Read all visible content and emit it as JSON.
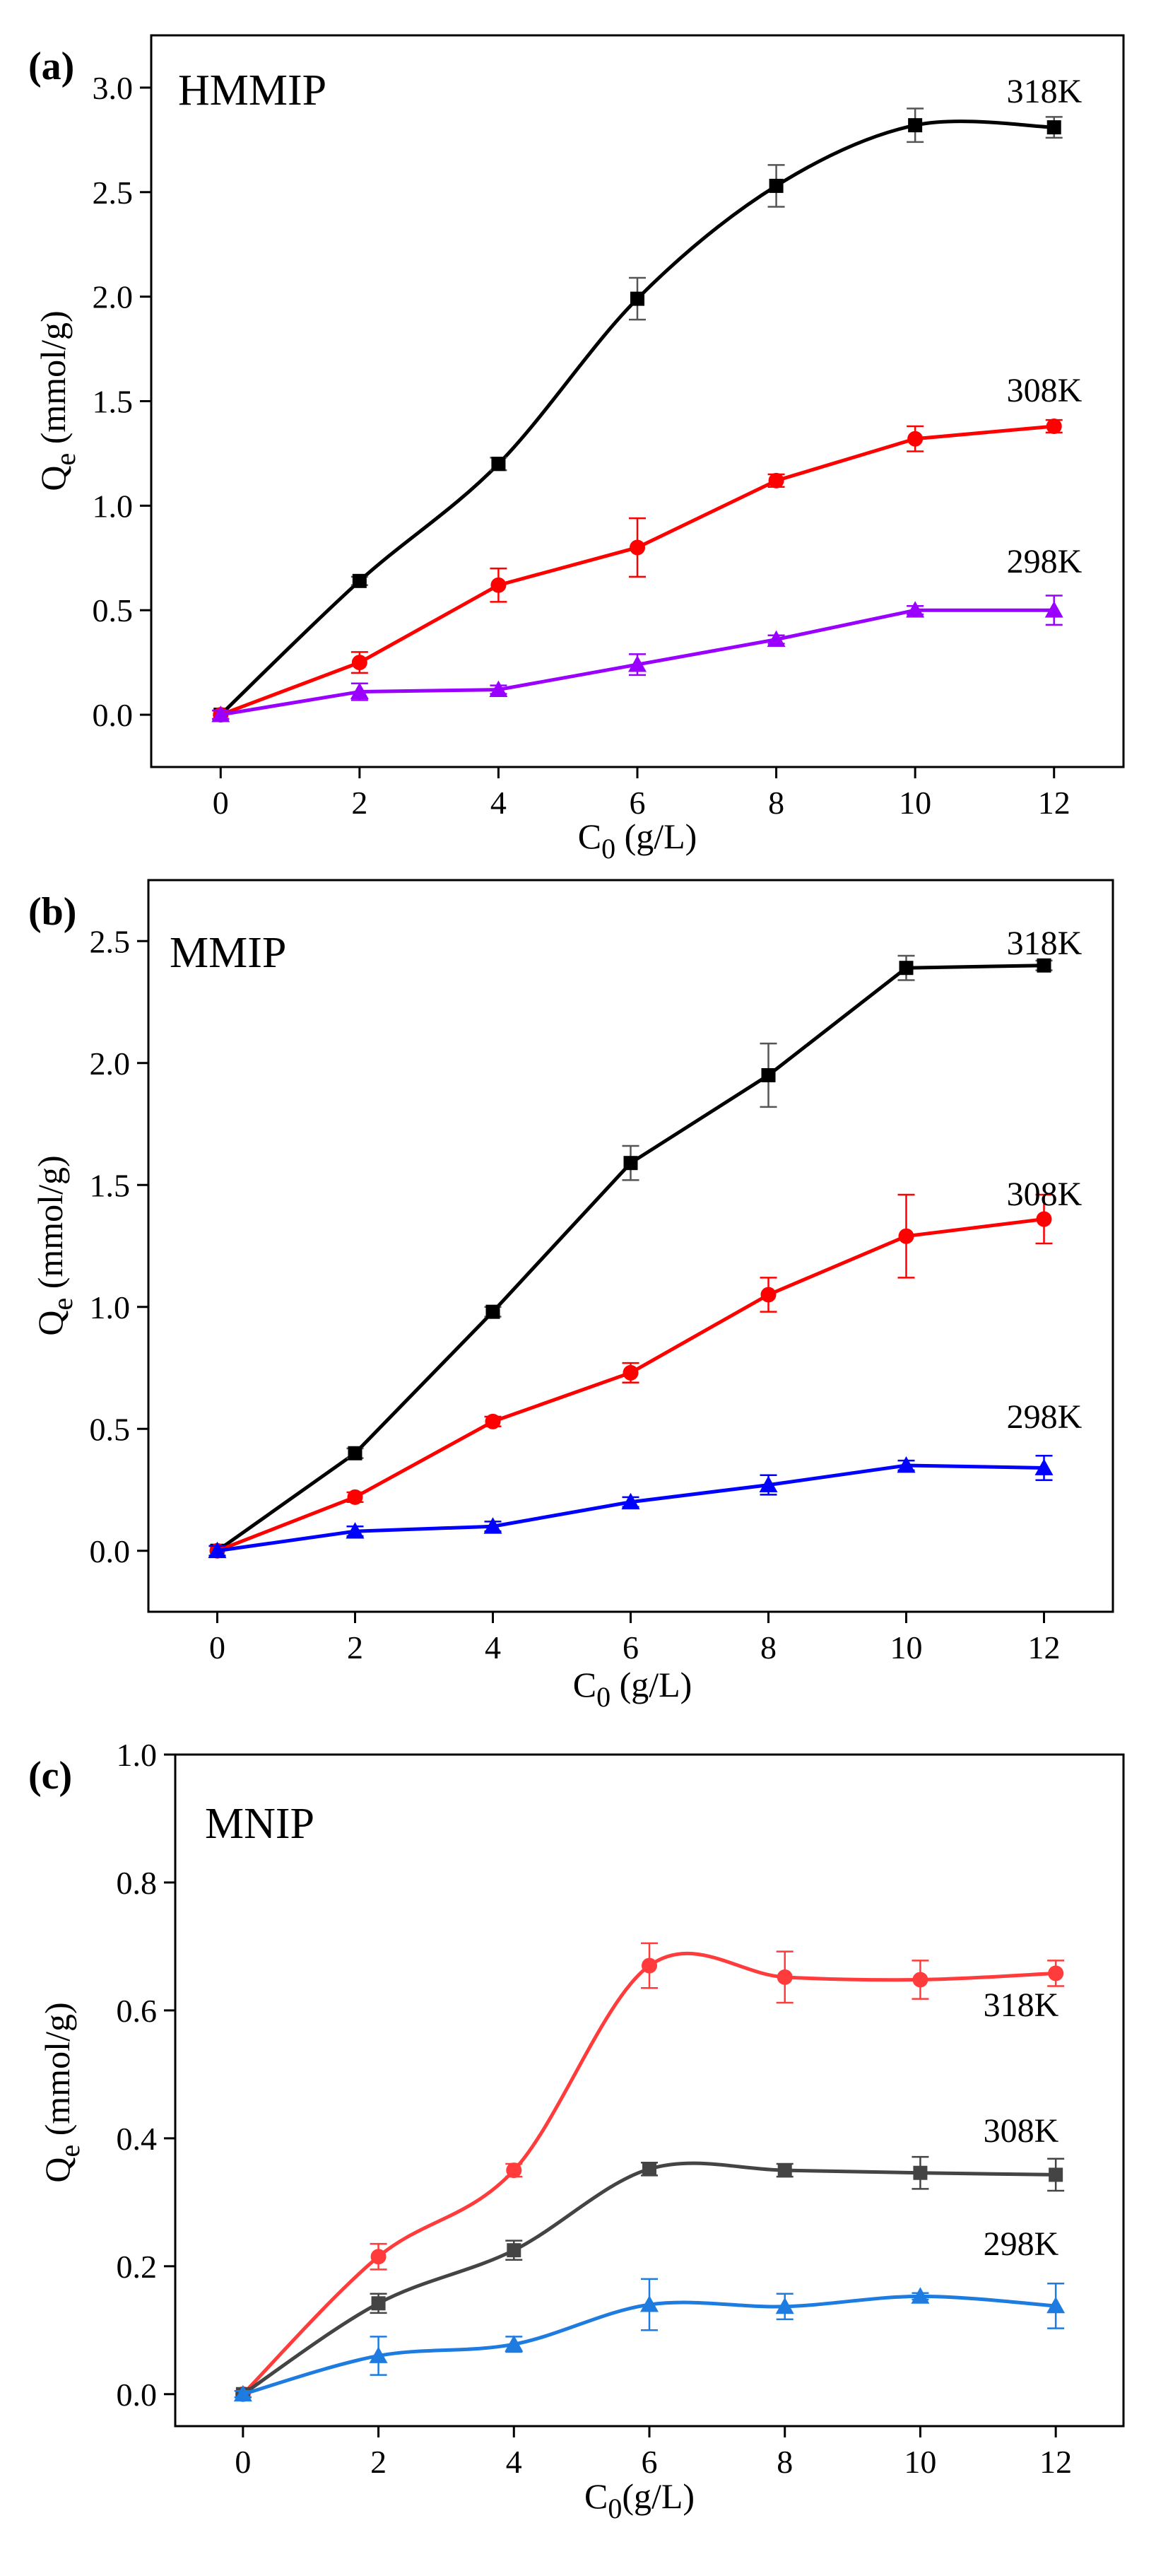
{
  "chart_data": [
    {
      "type": "line",
      "panel": "(a)",
      "title": "HMMIP",
      "xlabel": "C0 (g/L)",
      "ylabel": "Qe (mmol/g)",
      "xlim": [
        -1,
        13
      ],
      "ylim": [
        -0.25,
        3.25
      ],
      "xticks": [
        0,
        2,
        4,
        6,
        8,
        10,
        12
      ],
      "yticks": [
        0.0,
        0.5,
        1.0,
        1.5,
        2.0,
        2.5,
        3.0
      ],
      "x": [
        0,
        2,
        4,
        6,
        8,
        10,
        12
      ],
      "series": [
        {
          "name": "318K",
          "color": "#000000",
          "marker": "square",
          "smooth": true,
          "values": [
            0.0,
            0.64,
            1.2,
            1.99,
            2.53,
            2.82,
            2.81
          ],
          "errors": [
            0.02,
            0.02,
            0.03,
            0.1,
            0.1,
            0.08,
            0.05
          ]
        },
        {
          "name": "308K",
          "color": "#ff0000",
          "marker": "circle",
          "smooth": false,
          "values": [
            0.0,
            0.25,
            0.62,
            0.8,
            1.12,
            1.32,
            1.38
          ],
          "errors": [
            0.02,
            0.05,
            0.08,
            0.14,
            0.03,
            0.06,
            0.03
          ]
        },
        {
          "name": "298K",
          "color": "#9900ff",
          "marker": "triangle",
          "smooth": false,
          "values": [
            0.0,
            0.11,
            0.12,
            0.24,
            0.36,
            0.5,
            0.5
          ],
          "errors": [
            0.02,
            0.04,
            0.02,
            0.05,
            0.02,
            0.02,
            0.07
          ]
        }
      ]
    },
    {
      "type": "line",
      "panel": "(b)",
      "title": "MMIP",
      "xlabel": "C0 (g/L)",
      "ylabel": "Qe (mmol/g)",
      "xlim": [
        -1,
        13
      ],
      "ylim": [
        -0.25,
        2.75
      ],
      "xticks": [
        0,
        2,
        4,
        6,
        8,
        10,
        12
      ],
      "yticks": [
        0.0,
        0.5,
        1.0,
        1.5,
        2.0,
        2.5
      ],
      "x": [
        0,
        2,
        4,
        6,
        8,
        10,
        12
      ],
      "series": [
        {
          "name": "318K",
          "color": "#000000",
          "marker": "square",
          "smooth": false,
          "values": [
            0.0,
            0.4,
            0.98,
            1.59,
            1.95,
            2.39,
            2.4
          ],
          "errors": [
            0.02,
            0.02,
            0.02,
            0.07,
            0.13,
            0.05,
            0.02
          ]
        },
        {
          "name": "308K",
          "color": "#ff0000",
          "marker": "circle",
          "smooth": false,
          "values": [
            0.0,
            0.22,
            0.53,
            0.73,
            1.05,
            1.29,
            1.36
          ],
          "errors": [
            0.02,
            0.02,
            0.02,
            0.04,
            0.07,
            0.17,
            0.1
          ]
        },
        {
          "name": "298K",
          "color": "#0000ff",
          "marker": "triangle",
          "smooth": false,
          "values": [
            0.0,
            0.08,
            0.1,
            0.2,
            0.27,
            0.35,
            0.34
          ],
          "errors": [
            0.02,
            0.02,
            0.02,
            0.02,
            0.04,
            0.02,
            0.05
          ]
        }
      ]
    },
    {
      "type": "line",
      "panel": "(c)",
      "title": "MNIP",
      "xlabel": "C0(g/L)",
      "ylabel": "Qe (mmol/g)",
      "xlim": [
        -1,
        13
      ],
      "ylim": [
        -0.05,
        1.0
      ],
      "xticks": [
        0,
        2,
        4,
        6,
        8,
        10,
        12
      ],
      "yticks": [
        0.0,
        0.2,
        0.4,
        0.6,
        0.8,
        1.0
      ],
      "x": [
        0,
        2,
        4,
        6,
        8,
        10,
        12
      ],
      "series": [
        {
          "name": "318K",
          "color": "#ff3b3b",
          "marker": "circle",
          "smooth": true,
          "values": [
            0.0,
            0.215,
            0.35,
            0.67,
            0.652,
            0.648,
            0.658
          ],
          "errors": [
            0.005,
            0.02,
            0.01,
            0.035,
            0.04,
            0.03,
            0.02
          ]
        },
        {
          "name": "308K",
          "color": "#444444",
          "marker": "square",
          "smooth": true,
          "values": [
            0.0,
            0.142,
            0.225,
            0.352,
            0.35,
            0.346,
            0.343
          ],
          "errors": [
            0.005,
            0.015,
            0.015,
            0.01,
            0.01,
            0.025,
            0.025
          ]
        },
        {
          "name": "298K",
          "color": "#1e7be0",
          "marker": "triangle",
          "smooth": true,
          "values": [
            0.0,
            0.06,
            0.078,
            0.14,
            0.137,
            0.153,
            0.138
          ],
          "errors": [
            0.005,
            0.03,
            0.012,
            0.04,
            0.02,
            0.005,
            0.035
          ]
        }
      ]
    }
  ]
}
